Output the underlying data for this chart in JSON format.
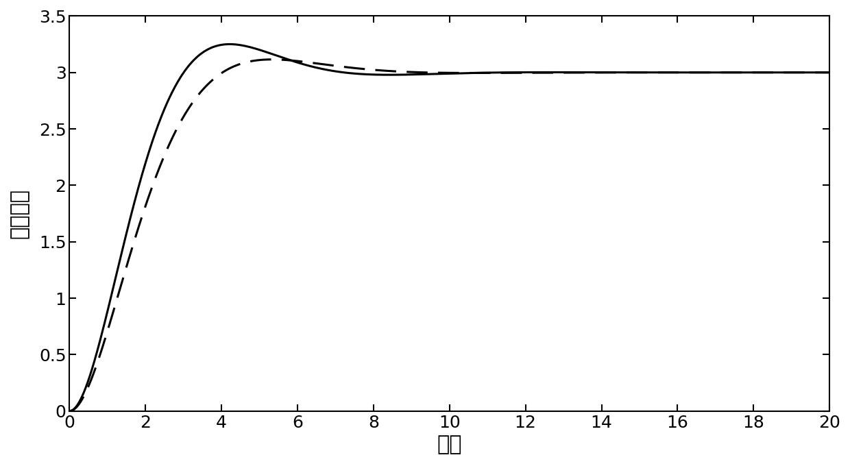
{
  "title": "",
  "xlabel": "时间",
  "ylabel": "台车位置",
  "xlim": [
    0,
    20
  ],
  "ylim": [
    0,
    3.5
  ],
  "xticks": [
    0,
    2,
    4,
    6,
    8,
    10,
    12,
    14,
    16,
    18,
    20
  ],
  "yticks": [
    0,
    0.5,
    1.0,
    1.5,
    2.0,
    2.5,
    3.0,
    3.5
  ],
  "line_color": "#000000",
  "linewidth_solid": 2.2,
  "linewidth_dashed": 2.2,
  "background_color": "#ffffff",
  "xlabel_fontsize": 22,
  "ylabel_fontsize": 22,
  "tick_fontsize": 18,
  "solid_omega_n": 0.95,
  "solid_zeta": 0.62,
  "solid_steady": 3.0,
  "dashed_omega_n": 0.85,
  "dashed_zeta": 0.72,
  "dashed_steady": 3.0
}
